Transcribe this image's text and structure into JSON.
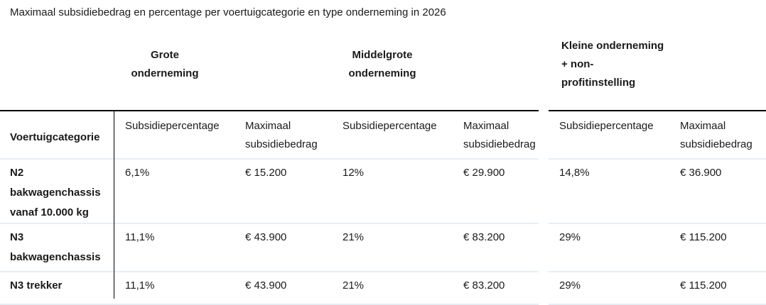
{
  "title": "Maximaal subsidiebedrag en percentage per voertuigcategorie en type onderneming in 2026",
  "colors": {
    "rule_dark": "#000000",
    "rule_light": "#e6eef5",
    "text": "#1a1a1a"
  },
  "table": {
    "group_headers": [
      {
        "label": "Grote onderneming"
      },
      {
        "label": "Middelgrote onderneming"
      },
      {
        "label": "Kleine onderneming\n+ non-\nprofitinstelling"
      }
    ],
    "column_headers": {
      "category": "Voertuigcategorie",
      "percentage": "Subsidiepercentage",
      "amount": "Maximaal subsidiebedrag"
    },
    "rows": [
      {
        "category": "N2 bakwagenchassis vanaf 10.000 kg",
        "values": [
          "6,1%",
          "€ 15.200",
          "12%",
          "€ 29.900",
          "14,8%",
          "€ 36.900"
        ]
      },
      {
        "category": "N3 bakwagenchassis",
        "values": [
          "11,1%",
          "€ 43.900",
          "21%",
          "€ 83.200",
          "29%",
          "€ 115.200"
        ]
      },
      {
        "category": "N3 trekker",
        "values": [
          "11,1%",
          "€ 43.900",
          "21%",
          "€ 83.200",
          "29%",
          "€ 115.200"
        ]
      }
    ]
  }
}
